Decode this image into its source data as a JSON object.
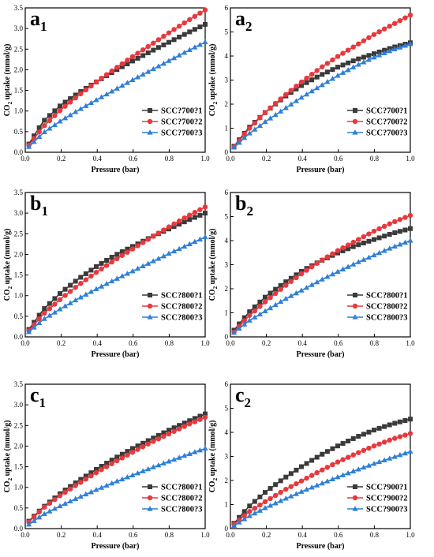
{
  "chart_data": [
    {
      "type": "line",
      "panel_letter": "a",
      "panel_sub": "1",
      "xlabel": "Pressure (bar)",
      "ylabel_pre": "CO",
      "ylabel_sub": "2",
      "ylabel_post": " uptake (mmol/g)",
      "xlim": [
        0,
        1
      ],
      "ylim": [
        0,
        3.5
      ],
      "xticks": [
        "0.0",
        "0.2",
        "0.4",
        "0.6",
        "0.8",
        "1.0"
      ],
      "yticks": [
        "0.0",
        "0.5",
        "1.0",
        "1.5",
        "2.0",
        "2.5",
        "3.0",
        "3.5"
      ],
      "legend_position": "bottom-right",
      "series": [
        {
          "name": "SCC?700?1",
          "color": "#3a3a3a",
          "marker": "square",
          "x": [
            0.02,
            0.1,
            0.2,
            0.3,
            0.4,
            0.5,
            0.6,
            0.7,
            0.8,
            0.9,
            1.0
          ],
          "y": [
            0.2,
            0.75,
            1.15,
            1.45,
            1.72,
            1.98,
            2.22,
            2.45,
            2.67,
            2.89,
            3.1
          ]
        },
        {
          "name": "SCC?700?2",
          "color": "#e8383d",
          "marker": "circle",
          "x": [
            0.02,
            0.1,
            0.2,
            0.3,
            0.4,
            0.5,
            0.6,
            0.7,
            0.8,
            0.9,
            1.0
          ],
          "y": [
            0.17,
            0.62,
            1.04,
            1.39,
            1.72,
            2.03,
            2.33,
            2.61,
            2.9,
            3.18,
            3.45
          ]
        },
        {
          "name": "SCC?700?3",
          "color": "#2f7fd8",
          "marker": "triangle",
          "x": [
            0.02,
            0.1,
            0.2,
            0.3,
            0.4,
            0.5,
            0.6,
            0.7,
            0.8,
            0.9,
            1.0
          ],
          "y": [
            0.13,
            0.47,
            0.77,
            1.03,
            1.28,
            1.52,
            1.76,
            1.99,
            2.22,
            2.45,
            2.67
          ]
        }
      ]
    },
    {
      "type": "line",
      "panel_letter": "a",
      "panel_sub": "2",
      "xlabel": "Pressure (bar)",
      "ylabel_pre": "CO",
      "ylabel_sub": "2",
      "ylabel_post": " uptake (mmol/g)",
      "xlim": [
        0,
        1
      ],
      "ylim": [
        0,
        6
      ],
      "xticks": [
        "0.0",
        "0.2",
        "0.4",
        "0.6",
        "0.8",
        "1.0"
      ],
      "yticks": [
        "0",
        "1",
        "2",
        "3",
        "4",
        "5",
        "6"
      ],
      "legend_position": "bottom-right",
      "series": [
        {
          "name": "SCC?700?1",
          "color": "#3a3a3a",
          "marker": "square",
          "x": [
            0.02,
            0.1,
            0.2,
            0.3,
            0.4,
            0.5,
            0.6,
            0.7,
            0.8,
            0.9,
            1.0
          ],
          "y": [
            0.25,
            1.0,
            1.7,
            2.3,
            2.8,
            3.2,
            3.55,
            3.85,
            4.1,
            4.35,
            4.55
          ]
        },
        {
          "name": "SCC?700?2",
          "color": "#e8383d",
          "marker": "circle",
          "x": [
            0.02,
            0.1,
            0.2,
            0.3,
            0.4,
            0.5,
            0.6,
            0.7,
            0.8,
            0.9,
            1.0
          ],
          "y": [
            0.22,
            0.95,
            1.7,
            2.35,
            2.95,
            3.5,
            4.0,
            4.45,
            4.9,
            5.3,
            5.7
          ]
        },
        {
          "name": "SCC?700?3",
          "color": "#2f7fd8",
          "marker": "triangle",
          "x": [
            0.02,
            0.1,
            0.2,
            0.3,
            0.4,
            0.5,
            0.6,
            0.7,
            0.8,
            0.9,
            1.0
          ],
          "y": [
            0.2,
            0.75,
            1.3,
            1.8,
            2.3,
            2.75,
            3.2,
            3.6,
            3.95,
            4.25,
            4.5
          ]
        }
      ]
    },
    {
      "type": "line",
      "panel_letter": "b",
      "panel_sub": "1",
      "xlabel": "Pressure (bar)",
      "ylabel_pre": "CO",
      "ylabel_sub": "2",
      "ylabel_post": " uptake (mmol/g)",
      "xlim": [
        0,
        1
      ],
      "ylim": [
        0,
        3.5
      ],
      "xticks": [
        "0.0",
        "0.2",
        "0.4",
        "0.6",
        "0.8",
        "1.0"
      ],
      "yticks": [
        "0.0",
        "0.5",
        "1.0",
        "1.5",
        "2.0",
        "2.5",
        "3.0",
        "3.5"
      ],
      "legend_position": "bottom-right",
      "series": [
        {
          "name": "SCC?800?1",
          "color": "#3a3a3a",
          "marker": "square",
          "x": [
            0.02,
            0.1,
            0.2,
            0.3,
            0.4,
            0.5,
            0.6,
            0.7,
            0.8,
            0.9,
            1.0
          ],
          "y": [
            0.18,
            0.66,
            1.08,
            1.42,
            1.72,
            1.98,
            2.2,
            2.42,
            2.62,
            2.82,
            3.0
          ]
        },
        {
          "name": "SCC?800?2",
          "color": "#e8383d",
          "marker": "circle",
          "x": [
            0.02,
            0.1,
            0.2,
            0.3,
            0.4,
            0.5,
            0.6,
            0.7,
            0.8,
            0.9,
            1.0
          ],
          "y": [
            0.15,
            0.55,
            0.93,
            1.27,
            1.58,
            1.87,
            2.14,
            2.41,
            2.67,
            2.92,
            3.15
          ]
        },
        {
          "name": "SCC?800?3",
          "color": "#2f7fd8",
          "marker": "triangle",
          "x": [
            0.02,
            0.1,
            0.2,
            0.3,
            0.4,
            0.5,
            0.6,
            0.7,
            0.8,
            0.9,
            1.0
          ],
          "y": [
            0.12,
            0.42,
            0.69,
            0.94,
            1.17,
            1.39,
            1.6,
            1.81,
            2.02,
            2.22,
            2.42
          ]
        }
      ]
    },
    {
      "type": "line",
      "panel_letter": "b",
      "panel_sub": "2",
      "xlabel": "Pressure (bar)",
      "ylabel_pre": "CO",
      "ylabel_sub": "2",
      "ylabel_post": " uptake (mmol/g)",
      "xlim": [
        0,
        1
      ],
      "ylim": [
        0,
        6
      ],
      "xticks": [
        "0.0",
        "0.2",
        "0.4",
        "0.6",
        "0.8",
        "1.0"
      ],
      "yticks": [
        "0",
        "1",
        "2",
        "3",
        "4",
        "5",
        "6"
      ],
      "legend_position": "bottom-right",
      "series": [
        {
          "name": "SCC?800?1",
          "color": "#3a3a3a",
          "marker": "square",
          "x": [
            0.02,
            0.1,
            0.2,
            0.3,
            0.4,
            0.5,
            0.6,
            0.7,
            0.8,
            0.9,
            1.0
          ],
          "y": [
            0.28,
            1.0,
            1.7,
            2.25,
            2.75,
            3.15,
            3.5,
            3.8,
            4.05,
            4.3,
            4.5
          ]
        },
        {
          "name": "SCC?800?2",
          "color": "#e8383d",
          "marker": "circle",
          "x": [
            0.02,
            0.1,
            0.2,
            0.3,
            0.4,
            0.5,
            0.6,
            0.7,
            0.8,
            0.9,
            1.0
          ],
          "y": [
            0.2,
            0.85,
            1.5,
            2.1,
            2.65,
            3.15,
            3.6,
            4.0,
            4.4,
            4.75,
            5.05
          ]
        },
        {
          "name": "SCC?800?3",
          "color": "#2f7fd8",
          "marker": "triangle",
          "x": [
            0.02,
            0.1,
            0.2,
            0.3,
            0.4,
            0.5,
            0.6,
            0.7,
            0.8,
            0.9,
            1.0
          ],
          "y": [
            0.17,
            0.65,
            1.1,
            1.55,
            1.95,
            2.35,
            2.72,
            3.07,
            3.4,
            3.72,
            4.0
          ]
        }
      ]
    },
    {
      "type": "line",
      "panel_letter": "c",
      "panel_sub": "1",
      "xlabel": "Pressure (bar)",
      "ylabel_pre": "CO",
      "ylabel_sub": "2",
      "ylabel_post": " uptake (mmol/g)",
      "xlim": [
        0,
        1
      ],
      "ylim": [
        0,
        3.5
      ],
      "xticks": [
        "0.0",
        "0.2",
        "0.4",
        "0.6",
        "0.8",
        "1.0"
      ],
      "yticks": [
        "0.0",
        "0.5",
        "1.0",
        "1.5",
        "2.0",
        "2.5",
        "3.0",
        "3.5"
      ],
      "legend_position": "bottom-right",
      "series": [
        {
          "name": "SCC?800?1",
          "color": "#3a3a3a",
          "marker": "square",
          "x": [
            0.02,
            0.1,
            0.2,
            0.3,
            0.4,
            0.5,
            0.6,
            0.7,
            0.8,
            0.9,
            1.0
          ],
          "y": [
            0.18,
            0.52,
            0.87,
            1.17,
            1.45,
            1.71,
            1.95,
            2.17,
            2.39,
            2.59,
            2.78
          ]
        },
        {
          "name": "SCC?800?2",
          "color": "#e8383d",
          "marker": "circle",
          "x": [
            0.02,
            0.1,
            0.2,
            0.3,
            0.4,
            0.5,
            0.6,
            0.7,
            0.8,
            0.9,
            1.0
          ],
          "y": [
            0.16,
            0.5,
            0.82,
            1.1,
            1.37,
            1.62,
            1.86,
            2.09,
            2.3,
            2.51,
            2.7
          ]
        },
        {
          "name": "SCC?800?3",
          "color": "#2f7fd8",
          "marker": "triangle",
          "x": [
            0.02,
            0.1,
            0.2,
            0.3,
            0.4,
            0.5,
            0.6,
            0.7,
            0.8,
            0.9,
            1.0
          ],
          "y": [
            0.1,
            0.34,
            0.56,
            0.76,
            0.95,
            1.13,
            1.3,
            1.47,
            1.63,
            1.79,
            1.94
          ]
        }
      ]
    },
    {
      "type": "line",
      "panel_letter": "c",
      "panel_sub": "2",
      "xlabel": "Pressure (bar)",
      "ylabel_pre": "CO",
      "ylabel_sub": "2",
      "ylabel_post": " uptake (mmol/g)",
      "xlim": [
        0,
        1
      ],
      "ylim": [
        0,
        6
      ],
      "xticks": [
        "0.0",
        "0.2",
        "0.4",
        "0.6",
        "0.8",
        "1.0"
      ],
      "yticks": [
        "0",
        "1",
        "2",
        "3",
        "4",
        "5",
        "6"
      ],
      "legend_position": "bottom-right",
      "series": [
        {
          "name": "SCC?900?1",
          "color": "#3a3a3a",
          "marker": "square",
          "x": [
            0.02,
            0.1,
            0.2,
            0.3,
            0.4,
            0.5,
            0.6,
            0.7,
            0.8,
            0.9,
            1.0
          ],
          "y": [
            0.22,
            0.9,
            1.55,
            2.1,
            2.6,
            3.05,
            3.45,
            3.8,
            4.1,
            4.35,
            4.55
          ]
        },
        {
          "name": "SCC?900?2",
          "color": "#e8383d",
          "marker": "circle",
          "x": [
            0.02,
            0.1,
            0.2,
            0.3,
            0.4,
            0.5,
            0.6,
            0.7,
            0.8,
            0.9,
            1.0
          ],
          "y": [
            0.18,
            0.68,
            1.15,
            1.6,
            2.0,
            2.4,
            2.78,
            3.12,
            3.44,
            3.72,
            3.95
          ]
        },
        {
          "name": "SCC?900?3",
          "color": "#2f7fd8",
          "marker": "triangle",
          "x": [
            0.02,
            0.1,
            0.2,
            0.3,
            0.4,
            0.5,
            0.6,
            0.7,
            0.8,
            0.9,
            1.0
          ],
          "y": [
            0.12,
            0.5,
            0.88,
            1.22,
            1.55,
            1.85,
            2.15,
            2.43,
            2.7,
            2.95,
            3.2
          ]
        }
      ]
    }
  ]
}
